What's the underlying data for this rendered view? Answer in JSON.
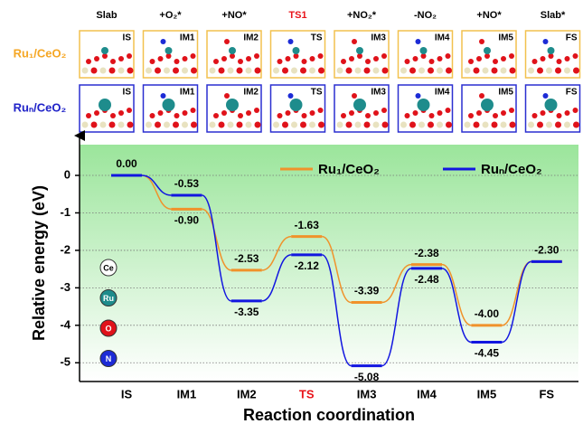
{
  "structures": {
    "headers": [
      "Slab",
      "+O₂*",
      "+NO*",
      "TS1",
      "+NO₂*",
      "-NO₂",
      "+NO*",
      "Slab*"
    ],
    "highlight_index": 3,
    "highlight_color": "#e8151b",
    "rows": [
      {
        "label": "Ru₁/CeO₂",
        "color": "#f5a623",
        "frame": "#f2c14e"
      },
      {
        "label": "Ruₙ/CeO₂",
        "color": "#1f22c8",
        "frame": "#2a2fd0"
      }
    ],
    "atoms": [
      {
        "label": "Ce",
        "color": "#ffffff"
      },
      {
        "label": "Ru",
        "color": "#1e8c8c"
      },
      {
        "label": "O",
        "color": "#e0121a"
      },
      {
        "label": "N",
        "color": "#1c2bd6"
      }
    ]
  },
  "chart_data": {
    "type": "energy-profile",
    "xlabel": "Reaction coordination",
    "ylabel": "Relative energy (eV)",
    "categories": [
      "IS",
      "IM1",
      "IM2",
      "TS",
      "IM3",
      "IM4",
      "IM5",
      "FS"
    ],
    "highlight_index": 3,
    "highlight_color": "#e8151b",
    "series": [
      {
        "name": "Ru₁/CeO₂",
        "color": "#f0922b",
        "values": [
          0,
          -0.9,
          -2.53,
          -1.63,
          -3.39,
          -2.38,
          -4.0,
          -2.3
        ],
        "value_labels": [
          "0.00",
          "-0.90",
          "-2.53",
          "-1.63",
          "-3.39",
          "-2.38",
          "-4.00",
          "-2.30"
        ]
      },
      {
        "name": "Ruₙ/CeO₂",
        "color": "#1216e0",
        "values": [
          0,
          -0.53,
          -3.35,
          -2.12,
          -5.08,
          -2.48,
          -4.45,
          -2.3
        ],
        "value_labels": [
          null,
          "-0.53",
          "-3.35",
          "-2.12",
          "-5.08",
          "-2.48",
          "-4.45",
          null
        ]
      }
    ],
    "ylim": [
      -5.5,
      0.7
    ],
    "yticks": [
      0,
      -1,
      -2,
      -3,
      -4,
      -5
    ],
    "grid": true
  }
}
